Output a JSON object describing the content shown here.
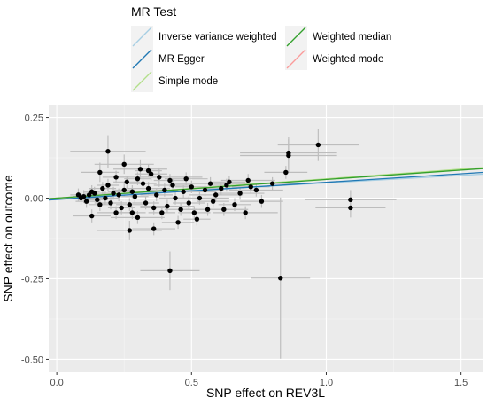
{
  "chart_data": {
    "type": "scatter",
    "xlabel": "SNP effect on REV3L",
    "ylabel": "SNP effect on outcome",
    "xlim": [
      -0.03,
      1.58
    ],
    "ylim": [
      -0.54,
      0.29
    ],
    "x_ticks": [
      {
        "value": 0.0,
        "label": "0.0"
      },
      {
        "value": 0.5,
        "label": "0.5"
      },
      {
        "value": 1.0,
        "label": "1.0"
      },
      {
        "value": 1.5,
        "label": "1.5"
      }
    ],
    "y_ticks": [
      {
        "value": -0.5,
        "label": "-0.50"
      },
      {
        "value": -0.25,
        "label": "-0.25"
      },
      {
        "value": 0.0,
        "label": "0.00"
      },
      {
        "value": 0.25,
        "label": "0.25"
      }
    ],
    "grid": true,
    "legend": {
      "title": "MR Test",
      "position": "top",
      "items": [
        {
          "label": "Inverse variance weighted",
          "color": "#a6cee3"
        },
        {
          "label": "MR Egger",
          "color": "#1f78b4"
        },
        {
          "label": "Simple mode",
          "color": "#b2df8a"
        },
        {
          "label": "Weighted median",
          "color": "#33a02c"
        },
        {
          "label": "Weighted mode",
          "color": "#fb9a99"
        }
      ]
    },
    "regression_lines": [
      {
        "method": "Inverse variance weighted",
        "color": "#a6cee3",
        "intercept": 0.0,
        "slope": 0.047
      },
      {
        "method": "MR Egger",
        "color": "#1f78b4",
        "intercept": -0.004,
        "slope": 0.053
      },
      {
        "method": "Weighted mode",
        "color": "#fb9a99",
        "intercept": 0.0,
        "slope": 0.059
      },
      {
        "method": "Simple mode",
        "color": "#b2df8a",
        "intercept": 0.0,
        "slope": 0.06
      },
      {
        "method": "Weighted median",
        "color": "#33a02c",
        "intercept": 0.0,
        "slope": 0.058
      }
    ],
    "points": [
      {
        "x": 0.97,
        "y": 0.165,
        "xse": 0.15,
        "yse": 0.05
      },
      {
        "x": 0.86,
        "y": 0.14,
        "xse": 0.18,
        "yse": 0.05
      },
      {
        "x": 0.86,
        "y": 0.132,
        "xse": 0.18,
        "yse": 0.05
      },
      {
        "x": 0.19,
        "y": 0.145,
        "xse": 0.14,
        "yse": 0.05
      },
      {
        "x": 0.31,
        "y": 0.09,
        "xse": 0.1,
        "yse": 0.03
      },
      {
        "x": 1.09,
        "y": -0.005,
        "xse": 0.17,
        "yse": 0.03
      },
      {
        "x": 1.09,
        "y": -0.03,
        "xse": 0.13,
        "yse": 0.03
      },
      {
        "x": 0.42,
        "y": -0.225,
        "xse": 0.11,
        "yse": 0.06
      },
      {
        "x": 0.83,
        "y": -0.248,
        "xse": 0.11,
        "yse": 0.25
      },
      {
        "x": 0.27,
        "y": -0.1,
        "xse": 0.12,
        "yse": 0.03
      },
      {
        "x": 0.36,
        "y": -0.095,
        "xse": 0.08,
        "yse": 0.02
      },
      {
        "x": 0.13,
        "y": -0.055,
        "xse": 0.07,
        "yse": 0.02
      },
      {
        "x": 0.7,
        "y": -0.045,
        "xse": 0.12,
        "yse": 0.02
      },
      {
        "x": 0.16,
        "y": 0.08,
        "xse": 0.07,
        "yse": 0.03
      },
      {
        "x": 0.25,
        "y": 0.105,
        "xse": 0.11,
        "yse": 0.03
      },
      {
        "x": 0.57,
        "y": 0.045,
        "xse": 0.13,
        "yse": 0.02
      },
      {
        "x": 0.62,
        "y": -0.035,
        "xse": 0.09,
        "yse": 0.02
      },
      {
        "x": 0.45,
        "y": -0.075,
        "xse": 0.06,
        "yse": 0.02
      },
      {
        "x": 0.52,
        "y": -0.065,
        "xse": 0.05,
        "yse": 0.02
      },
      {
        "x": 0.38,
        "y": 0.065,
        "xse": 0.16,
        "yse": 0.03
      },
      {
        "x": 0.48,
        "y": 0.06,
        "xse": 0.08,
        "yse": 0.02
      },
      {
        "x": 0.64,
        "y": 0.05,
        "xse": 0.06,
        "yse": 0.02
      },
      {
        "x": 0.71,
        "y": 0.055,
        "xse": 0.1,
        "yse": 0.02
      },
      {
        "x": 0.8,
        "y": 0.045,
        "xse": 0.1,
        "yse": 0.02
      },
      {
        "x": 0.74,
        "y": 0.025,
        "xse": 0.1,
        "yse": 0.02
      },
      {
        "x": 0.56,
        "y": -0.035,
        "xse": 0.08,
        "yse": 0.02
      },
      {
        "x": 0.22,
        "y": -0.045,
        "xse": 0.07,
        "yse": 0.02
      },
      {
        "x": 0.3,
        "y": -0.06,
        "xse": 0.1,
        "yse": 0.02
      },
      {
        "x": 0.34,
        "y": 0.03,
        "xse": 0.08,
        "yse": 0.02
      },
      {
        "x": 0.47,
        "y": 0.02,
        "xse": 0.12,
        "yse": 0.02
      },
      {
        "x": 0.68,
        "y": 0.015,
        "xse": 0.09,
        "yse": 0.02
      },
      {
        "x": 0.59,
        "y": 0.01,
        "xse": 0.1,
        "yse": 0.02
      },
      {
        "x": 0.28,
        "y": 0.02,
        "xse": 0.09,
        "yse": 0.02
      },
      {
        "x": 0.2,
        "y": -0.015,
        "xse": 0.06,
        "yse": 0.02
      },
      {
        "x": 0.41,
        "y": -0.025,
        "xse": 0.1,
        "yse": 0.02
      },
      {
        "x": 0.53,
        "y": 0.0,
        "xse": 0.11,
        "yse": 0.02
      },
      {
        "x": 0.85,
        "y": 0.08,
        "xse": 0.08,
        "yse": 0.02
      },
      {
        "x": 0.76,
        "y": -0.01,
        "xse": 0.08,
        "yse": 0.02
      },
      {
        "x": 0.35,
        "y": 0.075,
        "xse": 0.06,
        "yse": 0.02
      },
      {
        "x": 0.26,
        "y": 0.05,
        "xse": 0.05,
        "yse": 0.02
      },
      {
        "x": 0.43,
        "y": 0.04,
        "xse": 0.07,
        "yse": 0.02
      },
      {
        "x": 0.17,
        "y": 0.03,
        "xse": 0.05,
        "yse": 0.02
      },
      {
        "x": 0.24,
        "y": -0.03,
        "xse": 0.05,
        "yse": 0.02
      },
      {
        "x": 0.39,
        "y": -0.045,
        "xse": 0.05,
        "yse": 0.02
      },
      {
        "x": 0.49,
        "y": -0.015,
        "xse": 0.06,
        "yse": 0.02
      },
      {
        "x": 0.61,
        "y": 0.03,
        "xse": 0.06,
        "yse": 0.02
      },
      {
        "x": 0.66,
        "y": -0.02,
        "xse": 0.06,
        "yse": 0.02
      },
      {
        "x": 0.33,
        "y": -0.015,
        "xse": 0.05,
        "yse": 0.02
      },
      {
        "x": 0.29,
        "y": 0.005,
        "xse": 0.05,
        "yse": 0.02
      },
      {
        "x": 0.21,
        "y": 0.015,
        "xse": 0.04,
        "yse": 0.02
      },
      {
        "x": 0.15,
        "y": -0.005,
        "xse": 0.04,
        "yse": 0.02
      },
      {
        "x": 0.12,
        "y": 0.01,
        "xse": 0.04,
        "yse": 0.02
      },
      {
        "x": 0.1,
        "y": 0.005,
        "xse": 0.04,
        "yse": 0.02
      },
      {
        "x": 0.09,
        "y": 0.0,
        "xse": 0.04,
        "yse": 0.02
      },
      {
        "x": 0.08,
        "y": 0.01,
        "xse": 0.03,
        "yse": 0.02
      },
      {
        "x": 0.11,
        "y": -0.01,
        "xse": 0.04,
        "yse": 0.02
      },
      {
        "x": 0.14,
        "y": 0.015,
        "xse": 0.04,
        "yse": 0.02
      },
      {
        "x": 0.18,
        "y": 0.0,
        "xse": 0.05,
        "yse": 0.02
      },
      {
        "x": 0.23,
        "y": 0.01,
        "xse": 0.05,
        "yse": 0.02
      },
      {
        "x": 0.37,
        "y": 0.01,
        "xse": 0.06,
        "yse": 0.02
      },
      {
        "x": 0.44,
        "y": 0.0,
        "xse": 0.06,
        "yse": 0.02
      },
      {
        "x": 0.5,
        "y": 0.035,
        "xse": 0.06,
        "yse": 0.02
      },
      {
        "x": 0.55,
        "y": 0.025,
        "xse": 0.07,
        "yse": 0.02
      },
      {
        "x": 0.32,
        "y": 0.045,
        "xse": 0.05,
        "yse": 0.02
      },
      {
        "x": 0.27,
        "y": -0.02,
        "xse": 0.05,
        "yse": 0.02
      },
      {
        "x": 0.4,
        "y": 0.025,
        "xse": 0.05,
        "yse": 0.02
      },
      {
        "x": 0.46,
        "y": -0.035,
        "xse": 0.06,
        "yse": 0.02
      },
      {
        "x": 0.58,
        "y": -0.01,
        "xse": 0.06,
        "yse": 0.02
      },
      {
        "x": 0.63,
        "y": 0.04,
        "xse": 0.07,
        "yse": 0.02
      },
      {
        "x": 0.72,
        "y": 0.035,
        "xse": 0.07,
        "yse": 0.02
      },
      {
        "x": 0.19,
        "y": 0.04,
        "xse": 0.04,
        "yse": 0.02
      },
      {
        "x": 0.16,
        "y": -0.02,
        "xse": 0.04,
        "yse": 0.02
      },
      {
        "x": 0.3,
        "y": 0.06,
        "xse": 0.05,
        "yse": 0.02
      },
      {
        "x": 0.36,
        "y": -0.03,
        "xse": 0.05,
        "yse": 0.02
      },
      {
        "x": 0.42,
        "y": 0.055,
        "xse": 0.06,
        "yse": 0.02
      },
      {
        "x": 0.25,
        "y": 0.025,
        "xse": 0.04,
        "yse": 0.02
      },
      {
        "x": 0.13,
        "y": 0.02,
        "xse": 0.03,
        "yse": 0.02
      },
      {
        "x": 0.22,
        "y": 0.065,
        "xse": 0.05,
        "yse": 0.02
      },
      {
        "x": 0.51,
        "y": -0.045,
        "xse": 0.06,
        "yse": 0.02
      },
      {
        "x": 0.28,
        "y": -0.045,
        "xse": 0.05,
        "yse": 0.02
      },
      {
        "x": 0.34,
        "y": 0.085,
        "xse": 0.05,
        "yse": 0.02
      }
    ]
  }
}
